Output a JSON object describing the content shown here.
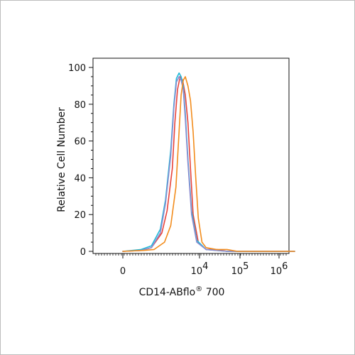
{
  "chart_data": {
    "type": "line",
    "xlabel_main": "CD14-ABflo",
    "xlabel_sup": "®",
    "xlabel_tail": " 700",
    "ylabel": "Relative Cell Number",
    "ylim": [
      0,
      100
    ],
    "y_ticks": [
      "0",
      "20",
      "40",
      "60",
      "80",
      "100"
    ],
    "x_ticks": [
      {
        "base": "0",
        "exp": ""
      },
      {
        "base": "10",
        "exp": "4"
      },
      {
        "base": "10",
        "exp": "5"
      },
      {
        "base": "10",
        "exp": "6"
      }
    ],
    "series": [
      {
        "color": "#e8423a",
        "x": [
          0,
          0.35,
          0.55,
          0.75,
          0.85,
          0.95,
          1.0,
          1.05,
          1.1,
          1.15,
          1.2,
          1.25,
          1.3,
          1.35,
          1.45,
          1.6,
          1.8,
          2.0,
          2.5,
          3.3
        ],
        "y": [
          0,
          0.5,
          2,
          10,
          22,
          45,
          70,
          88,
          95,
          93,
          85,
          70,
          45,
          20,
          5,
          1,
          1,
          0,
          0,
          0
        ]
      },
      {
        "color": "#1fb8d8",
        "x": [
          0,
          0.35,
          0.55,
          0.72,
          0.82,
          0.92,
          0.98,
          1.03,
          1.08,
          1.12,
          1.16,
          1.2,
          1.25,
          1.32,
          1.42,
          1.6,
          1.8,
          2.0,
          2.5,
          3.3
        ],
        "y": [
          0,
          1,
          3,
          12,
          28,
          55,
          80,
          94,
          97,
          95,
          90,
          75,
          50,
          22,
          6,
          1,
          0.5,
          0,
          0,
          0
        ]
      },
      {
        "color": "#8c8cd0",
        "x": [
          0,
          0.35,
          0.55,
          0.72,
          0.82,
          0.92,
          0.98,
          1.03,
          1.08,
          1.12,
          1.16,
          1.2,
          1.25,
          1.32,
          1.42,
          1.6,
          2.0,
          3.3
        ],
        "y": [
          0,
          0.5,
          2,
          10,
          26,
          52,
          78,
          92,
          95,
          93,
          88,
          72,
          48,
          20,
          5,
          1,
          0,
          0
        ]
      },
      {
        "color": "#f28c1c",
        "x": [
          0,
          0.4,
          0.6,
          0.8,
          0.92,
          1.02,
          1.08,
          1.12,
          1.16,
          1.2,
          1.25,
          1.3,
          1.35,
          1.4,
          1.45,
          1.52,
          1.6,
          1.8,
          2.0,
          2.2,
          2.5,
          3.3
        ],
        "y": [
          0,
          0.5,
          1,
          5,
          14,
          35,
          65,
          85,
          93,
          95,
          90,
          82,
          65,
          40,
          18,
          5,
          2,
          1,
          1,
          0,
          0,
          0
        ]
      }
    ]
  }
}
